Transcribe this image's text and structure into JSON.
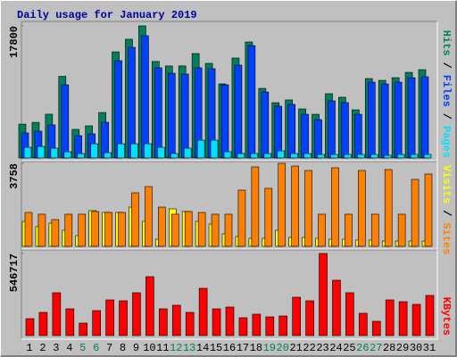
{
  "chart_data": [
    {
      "type": "bar",
      "title": "Daily usage for January 2019",
      "ylim": [
        0,
        17800
      ],
      "yticks": [
        17800
      ],
      "legend_separator": "/",
      "series": [
        {
          "name": "Hits",
          "color": "#00805c",
          "values": [
            4560,
            4800,
            5900,
            11000,
            3850,
            4330,
            6130,
            14300,
            16000,
            17800,
            13000,
            12400,
            12400,
            14070,
            12750,
            9980,
            13470,
            15630,
            9380,
            7450,
            7820,
            6610,
            5890,
            8660,
            8180,
            6490,
            10700,
            10460,
            10820,
            11540,
            11900
          ]
        },
        {
          "name": "Files",
          "color": "#0040ff",
          "values": [
            3370,
            3610,
            4450,
            9860,
            3010,
            3250,
            4810,
            13110,
            14910,
            16480,
            12150,
            11420,
            11300,
            12150,
            12030,
            9860,
            12510,
            15150,
            8900,
            6980,
            7220,
            5890,
            5170,
            7700,
            7460,
            5890,
            10220,
            9980,
            10220,
            10820,
            10940
          ]
        },
        {
          "name": "Pages",
          "color": "#00e0ff",
          "values": [
            1440,
            1560,
            1320,
            840,
            600,
            1920,
            720,
            1920,
            1920,
            1920,
            1440,
            600,
            1320,
            2400,
            2400,
            840,
            600,
            600,
            600,
            960,
            600,
            600,
            480,
            480,
            480,
            480,
            480,
            360,
            480,
            480,
            480
          ]
        }
      ]
    },
    {
      "type": "bar",
      "ylim": [
        0,
        3758
      ],
      "yticks": [
        3758
      ],
      "legend_separator": "/",
      "series": [
        {
          "name": "Visits",
          "color": "#ffff00",
          "values": [
            1131,
            889,
            1050,
            727,
            485,
            1616,
            1535,
            1535,
            1778,
            1131,
            323,
            1697,
            1576,
            1131,
            1010,
            566,
            444,
            364,
            364,
            727,
            404,
            404,
            364,
            323,
            323,
            283,
            283,
            242,
            242,
            242,
            242
          ]
        },
        {
          "name": "Sites",
          "color": "#ff8000",
          "values": [
            1535,
            1455,
            1212,
            1455,
            1455,
            1576,
            1535,
            1535,
            2424,
            2707,
            1778,
            1455,
            1576,
            1535,
            1455,
            1455,
            2545,
            3596,
            2626,
            3758,
            3636,
            3434,
            1455,
            3556,
            1455,
            3434,
            1455,
            3475,
            1455,
            3030,
            3273
          ]
        }
      ]
    },
    {
      "type": "bar",
      "ylim": [
        0,
        546717
      ],
      "yticks": [
        546717
      ],
      "categories": [
        "1",
        "2",
        "3",
        "4",
        "5",
        "6",
        "7",
        "8",
        "9",
        "10",
        "11",
        "12",
        "13",
        "14",
        "15",
        "16",
        "17",
        "18",
        "19",
        "20",
        "21",
        "22",
        "23",
        "24",
        "25",
        "26",
        "27",
        "28",
        "29",
        "30",
        "31"
      ],
      "category_colors": [
        "#000000",
        "#000000",
        "#000000",
        "#000000",
        "#00805c",
        "#00805c",
        "#000000",
        "#000000",
        "#000000",
        "#000000",
        "#000000",
        "#00805c",
        "#00805c",
        "#000000",
        "#000000",
        "#000000",
        "#000000",
        "#000000",
        "#00805c",
        "#00805c",
        "#000000",
        "#000000",
        "#000000",
        "#000000",
        "#000000",
        "#00805c",
        "#00805c",
        "#000000",
        "#000000",
        "#000000",
        "#000000"
      ],
      "series": [
        {
          "name": "KBytes",
          "color": "#ff0000",
          "values": [
            112900,
            154500,
            285300,
            178300,
            83200,
            166400,
            237700,
            231800,
            285300,
            392200,
            178300,
            202100,
            154500,
            315000,
            178300,
            190200,
            118900,
            142600,
            124800,
            130700,
            255500,
            231800,
            546717,
            368500,
            285300,
            148600,
            95100,
            237700,
            225800,
            208000,
            267400
          ]
        }
      ]
    }
  ]
}
